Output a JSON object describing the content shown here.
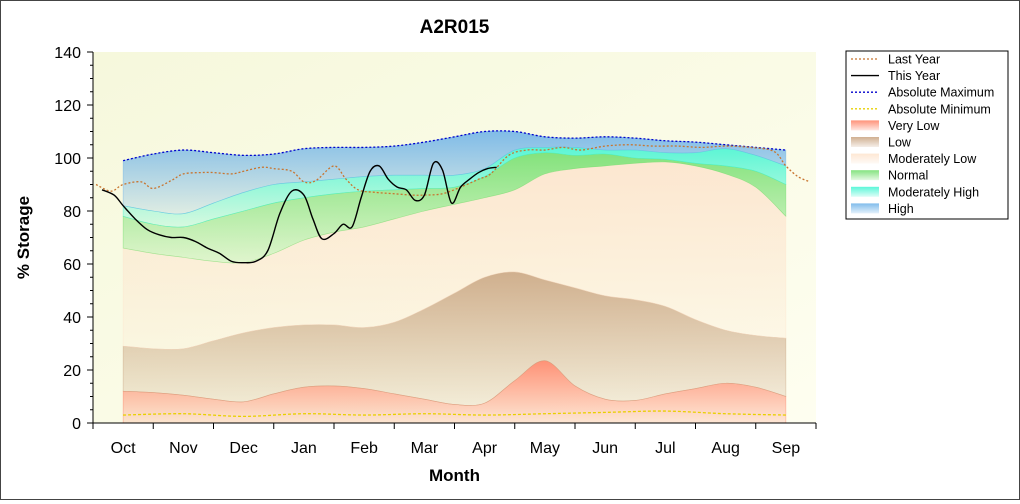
{
  "chart_data": {
    "type": "area",
    "title": "A2R015",
    "xlabel": "Month",
    "ylabel": "% Storage",
    "ylim": [
      0,
      140
    ],
    "yticks": [
      0,
      20,
      40,
      60,
      80,
      100,
      120,
      140
    ],
    "xlim": [
      -0.5,
      11.5
    ],
    "categories": [
      "Oct",
      "Nov",
      "Dec",
      "Jan",
      "Feb",
      "Mar",
      "Apr",
      "May",
      "Jun",
      "Jul",
      "Aug",
      "Sep"
    ],
    "legend_position": "right",
    "legend": [
      "Last Year",
      "This Year",
      "Absolute Maximum",
      "Absolute Minimum",
      "Very Low",
      "Low",
      "Moderately Low",
      "Normal",
      "Moderately High",
      "High"
    ],
    "band_x": [
      0,
      0.5,
      1,
      1.5,
      2,
      2.5,
      3,
      3.5,
      4,
      4.5,
      5,
      5.5,
      6,
      6.5,
      7,
      7.5,
      8,
      8.5,
      9,
      9.5,
      10,
      10.5,
      11
    ],
    "bands": [
      {
        "name": "Very Low",
        "color": "#ff7f62",
        "values": [
          12,
          11.5,
          10.5,
          9,
          8,
          11,
          13.5,
          14,
          13,
          11,
          9,
          7,
          7.5,
          16,
          23.5,
          14,
          9,
          8.5,
          11,
          13,
          15,
          13.5,
          10
        ]
      },
      {
        "name": "Low",
        "color": "#c8a27e",
        "values": [
          29,
          28,
          28,
          31,
          34,
          36,
          37,
          37,
          36,
          38,
          43,
          49,
          55,
          57,
          54,
          51,
          48,
          46.5,
          44,
          39,
          35,
          33,
          32
        ]
      },
      {
        "name": "Moderately Low",
        "color": "#fde3cc",
        "values": [
          66,
          64,
          62.5,
          61,
          60.5,
          64,
          69,
          72,
          74,
          77,
          80,
          82.5,
          85,
          88,
          94,
          96,
          97,
          98,
          98.5,
          97,
          94,
          89,
          78
        ]
      },
      {
        "name": "Normal",
        "color": "#6fde6a",
        "values": [
          78,
          75,
          74,
          77,
          80,
          83,
          85,
          86.5,
          87.5,
          88,
          88.5,
          89,
          93,
          100,
          102,
          101,
          101.5,
          100,
          99.5,
          98,
          97,
          95,
          90
        ]
      },
      {
        "name": "Moderately High",
        "color": "#3ff5d2",
        "values": [
          82,
          80,
          79,
          83,
          87,
          90,
          91,
          92,
          93,
          93.5,
          93.5,
          93.5,
          96,
          103,
          104,
          104,
          103,
          103,
          102,
          102,
          103.5,
          101,
          97
        ]
      },
      {
        "name": "High",
        "color": "#6ab0e8",
        "values": [
          99,
          101.5,
          103,
          102,
          101,
          101.5,
          103.5,
          104,
          104,
          104.5,
          106,
          108,
          110,
          110,
          108,
          107.5,
          108,
          107.5,
          106.5,
          106,
          105,
          104,
          103
        ]
      }
    ],
    "series": [
      {
        "name": "Last Year",
        "color": "#c8742f",
        "style": "dotted",
        "x": [
          -0.45,
          -0.2,
          0,
          0.3,
          0.5,
          0.8,
          1,
          1.3,
          1.5,
          1.8,
          2,
          2.3,
          2.5,
          2.8,
          3,
          3.2,
          3.5,
          3.7,
          3.9,
          4.2,
          4.5,
          4.8,
          5,
          5.3,
          5.6,
          5.9,
          6.1,
          6.4,
          6.7,
          7,
          7.3,
          7.6,
          8,
          8.4,
          8.8,
          9.2,
          9.6,
          10,
          10.4,
          10.8,
          11,
          11.2,
          11.4
        ],
        "values": [
          90,
          87.5,
          90,
          91,
          88.5,
          91.5,
          94,
          94.5,
          94.5,
          94,
          95,
          96.5,
          96,
          95,
          91,
          91.5,
          97,
          92,
          88,
          87,
          86.5,
          86,
          86,
          86.5,
          89,
          92,
          94,
          101,
          103,
          103,
          104,
          103,
          104.5,
          105,
          104.5,
          104.5,
          104,
          104.5,
          104,
          102.5,
          97,
          93,
          91
        ]
      },
      {
        "name": "This Year",
        "color": "#000000",
        "style": "solid",
        "x": [
          -0.35,
          -0.15,
          0,
          0.2,
          0.4,
          0.6,
          0.8,
          1,
          1.2,
          1.4,
          1.6,
          1.8,
          2,
          2.2,
          2.4,
          2.6,
          2.8,
          3,
          3.15,
          3.3,
          3.5,
          3.65,
          3.8,
          3.95,
          4.1,
          4.25,
          4.4,
          4.55,
          4.7,
          4.85,
          5,
          5.15,
          5.3,
          5.45,
          5.6,
          5.75,
          5.9,
          6.05,
          6.2
        ],
        "values": [
          88,
          86,
          82,
          77,
          73,
          71,
          70,
          70,
          68.5,
          66,
          64,
          61,
          60.5,
          61,
          65,
          79,
          87.5,
          86,
          77,
          69.5,
          71.5,
          75,
          74,
          85,
          95,
          97,
          92,
          89,
          88,
          84,
          86,
          98,
          95.5,
          83,
          89,
          92,
          94.5,
          96,
          96.5
        ]
      },
      {
        "name": "Absolute Maximum",
        "color": "#0000cc",
        "style": "dotted",
        "x": [
          0,
          0.5,
          1,
          1.5,
          2,
          2.5,
          3,
          3.5,
          4,
          4.5,
          5,
          5.5,
          6,
          6.5,
          7,
          7.5,
          8,
          8.5,
          9,
          9.5,
          10,
          10.5,
          11
        ],
        "values": [
          99,
          101.5,
          103,
          102,
          101,
          101.5,
          103.5,
          104,
          104,
          104.5,
          106,
          108,
          110,
          110,
          108,
          107.5,
          108,
          107.5,
          106.5,
          106,
          105,
          104,
          103
        ]
      },
      {
        "name": "Absolute Minimum",
        "color": "#e8d000",
        "style": "dotted",
        "x": [
          0,
          1,
          2,
          3,
          4,
          5,
          6,
          7,
          8,
          9,
          10,
          11
        ],
        "values": [
          3,
          3.5,
          2.5,
          3.5,
          3,
          3.5,
          3,
          3.5,
          4,
          4.5,
          3.5,
          3
        ]
      }
    ]
  }
}
